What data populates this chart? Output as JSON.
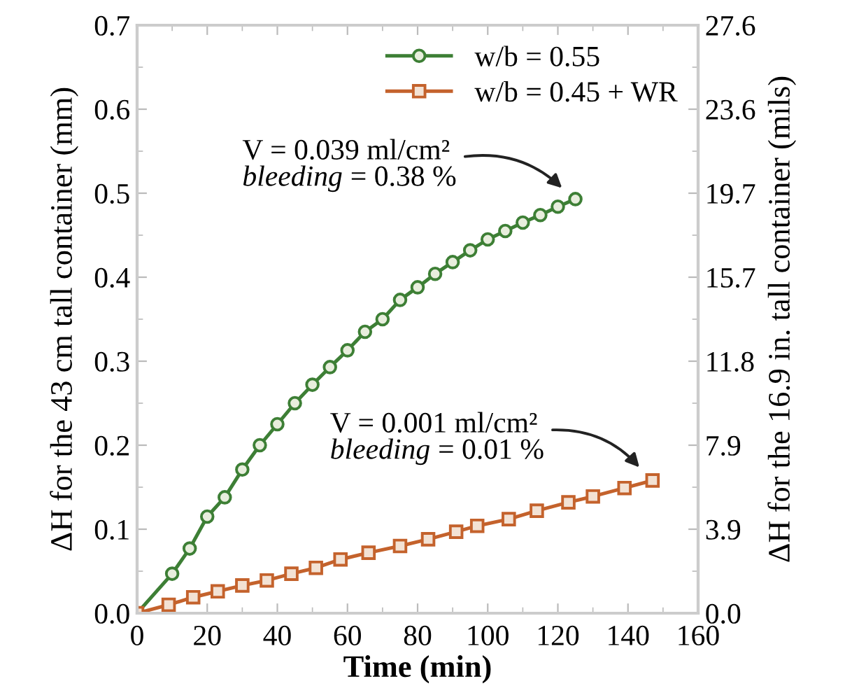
{
  "chart_data": {
    "type": "line",
    "xlabel": "Time (min)",
    "ylabel": "ΔH for the 43 cm tall container (mm)",
    "y2label": "ΔH for the 16.9 in. tall container (mils)",
    "xlim": [
      0,
      160
    ],
    "xticks": [
      0,
      20,
      40,
      60,
      80,
      100,
      120,
      140,
      160
    ],
    "ylim": [
      0,
      0.7
    ],
    "yticks": [
      {
        "value": 0,
        "label": "0.0"
      },
      0.1,
      0.2,
      0.3,
      0.4,
      0.5,
      0.6,
      0.7
    ],
    "y2lim": [
      0,
      27.559
    ],
    "y2ticks": [
      {
        "value": 0,
        "label": "0.0"
      },
      {
        "value": 3.937,
        "label": "3.9"
      },
      {
        "value": 7.874,
        "label": "7.9"
      },
      {
        "value": 11.811,
        "label": "11.8"
      },
      {
        "value": 15.748,
        "label": "15.7"
      },
      {
        "value": 19.685,
        "label": "19.7"
      },
      {
        "value": 23.622,
        "label": "23.6"
      },
      {
        "value": 27.559,
        "label": "27.6"
      }
    ],
    "legend": "top right",
    "grid": false,
    "line_style": "solid",
    "series": [
      {
        "name": "w/b = 0.55",
        "color": "#3d7f35",
        "marker": "circle",
        "x": [
          0,
          10,
          15,
          20,
          25,
          30,
          35,
          40,
          45,
          50,
          55,
          60,
          65,
          70,
          75,
          80,
          85,
          90,
          95,
          100,
          105,
          110,
          115,
          120,
          125
        ],
        "values": [
          0.0,
          0.047,
          0.077,
          0.115,
          0.138,
          0.171,
          0.2,
          0.225,
          0.25,
          0.272,
          0.293,
          0.313,
          0.335,
          0.35,
          0.373,
          0.388,
          0.404,
          0.418,
          0.432,
          0.445,
          0.455,
          0.465,
          0.474,
          0.484,
          0.493
        ]
      },
      {
        "name": "w/b = 0.45 + WR",
        "color": "#c4622c",
        "marker": "square",
        "x": [
          0,
          9,
          16,
          23,
          30,
          37,
          44,
          51,
          58,
          66,
          75,
          83,
          91,
          97,
          106,
          114,
          123,
          130,
          139,
          147
        ],
        "values": [
          0.0,
          0.01,
          0.019,
          0.026,
          0.033,
          0.039,
          0.047,
          0.054,
          0.064,
          0.072,
          0.08,
          0.088,
          0.097,
          0.104,
          0.112,
          0.122,
          0.132,
          0.139,
          0.149,
          0.158
        ]
      }
    ],
    "annotations": [
      "V = 0.039 ml/cm²",
      "bleeding = 0.38 %",
      "V = 0.001 ml/cm²",
      "bleeding = 0.01 %"
    ]
  }
}
